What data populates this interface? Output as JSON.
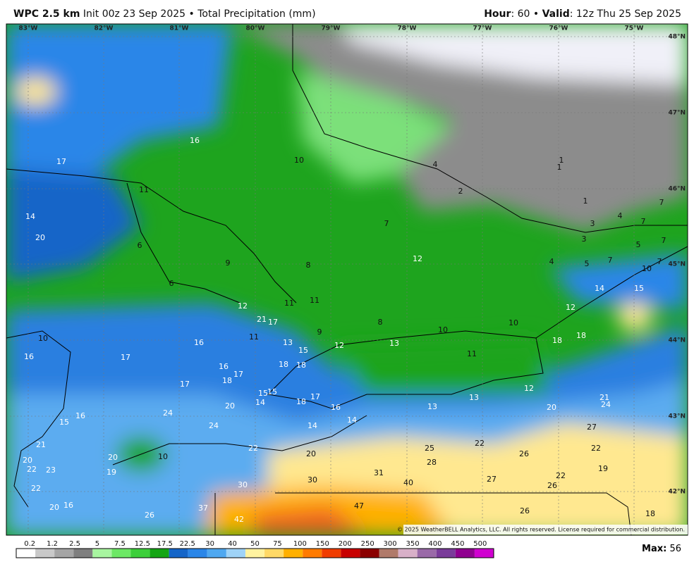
{
  "header": {
    "model": "WPC 2.5 km",
    "title": "Init 00z 23 Sep 2025 • Total Precipitation (mm)",
    "hour_label": "Hour",
    "hour_value": ": 60 •",
    "valid_label": "Valid",
    "valid_value": ": 12z Thu 25 Sep 2025"
  },
  "longitudes": [
    "83°W",
    "82°W",
    "81°W",
    "80°W",
    "79°W",
    "78°W",
    "77°W",
    "76°W",
    "75°W"
  ],
  "latitudes": [
    "48°N",
    "47°N",
    "46°N",
    "45°N",
    "44°N",
    "43°N",
    "42°N"
  ],
  "map_labels": [
    16,
    17,
    10,
    4,
    11,
    1,
    1,
    2,
    14,
    1,
    7,
    4,
    20,
    7,
    7,
    3,
    6,
    3,
    5,
    7,
    9,
    8,
    12,
    4,
    5,
    7,
    7,
    10,
    6,
    14,
    15,
    12,
    11,
    11,
    21,
    17,
    9,
    8,
    10,
    10,
    12,
    10,
    16,
    11,
    13,
    15,
    12,
    13,
    11,
    18,
    18,
    16,
    17,
    16,
    17,
    18,
    18,
    18,
    17,
    15,
    15,
    17,
    12,
    14,
    18,
    20,
    16,
    13,
    13,
    20,
    21,
    24,
    24,
    16,
    15,
    24,
    14,
    14,
    27,
    21,
    22,
    25,
    22,
    22,
    10,
    20,
    20,
    20,
    26,
    28,
    22,
    23,
    19,
    31,
    19,
    27,
    22,
    40,
    30,
    30,
    26,
    22,
    20,
    16,
    37,
    47,
    26,
    18,
    26,
    42
  ],
  "colorbar": {
    "ticks": [
      0.2,
      1.2,
      2.5,
      5,
      7.5,
      12.5,
      17.5,
      22.5,
      30,
      40,
      50,
      75,
      100,
      150,
      200,
      250,
      300,
      350,
      400,
      450,
      500
    ],
    "colors": [
      "#ffffff",
      "#c9c9c9",
      "#a5a5a5",
      "#7f7f7f",
      "#a8f5a0",
      "#6de865",
      "#3ccf3a",
      "#14a514",
      "#1565c8",
      "#2a86e8",
      "#4fa8f0",
      "#9fd3f7",
      "#fff3a0",
      "#ffd966",
      "#ffb000",
      "#ff7b00",
      "#f03c00",
      "#c80000",
      "#8b0000",
      "#b07a6a",
      "#d8b0c8",
      "#9a6aa8",
      "#7a3c9a",
      "#900090",
      "#d000d0"
    ]
  },
  "copyright": "© 2025 WeatherBELL Analytics, LLC. All rights reserved. License required for commercial distribution.",
  "max_label": "Max:",
  "max_value": 56
}
